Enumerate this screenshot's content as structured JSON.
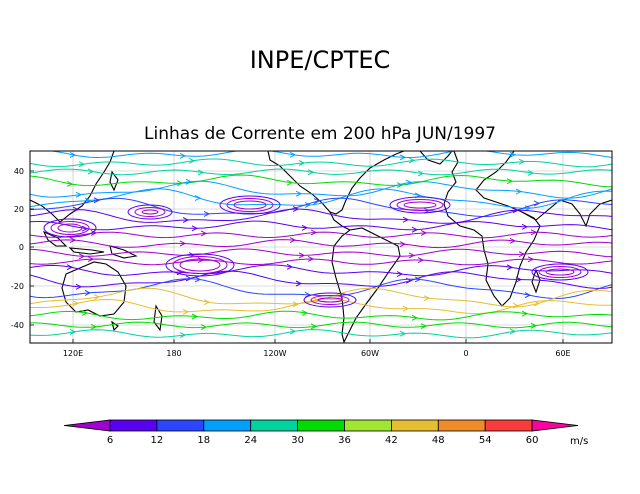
{
  "title": "INPE/CPTEC",
  "subtitle": "Linhas de Corrente em 200 hPa JUN/1997",
  "map": {
    "lat_labels": [
      "40",
      "20",
      "0",
      "-20",
      "-40"
    ],
    "lon_labels": [
      "120E",
      "180",
      "120W",
      "60W",
      "0",
      "60E"
    ]
  },
  "colorbar": {
    "labels": [
      "6",
      "12",
      "18",
      "24",
      "30",
      "36",
      "42",
      "48",
      "54",
      "60"
    ],
    "units": "m/s",
    "colors": [
      "#a000d0",
      "#5a00f0",
      "#2a46ff",
      "#00a0ff",
      "#00d2a0",
      "#00dc00",
      "#a0e632",
      "#e6be32",
      "#f08c28",
      "#fa3c3c",
      "#ff00a0"
    ]
  }
}
